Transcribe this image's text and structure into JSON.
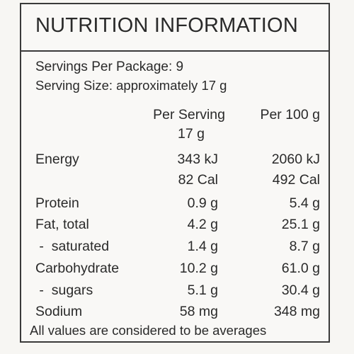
{
  "panel": {
    "title": "NUTRITION INFORMATION",
    "servings": "Servings Per Package: 9",
    "serving_size": "Serving Size: approximately 17 g",
    "headers": {
      "per_serving": "Per Serving",
      "per_serving_sub": "17 g",
      "per_100g": "Per 100 g"
    },
    "rows": [
      {
        "label": "Energy",
        "per_serving": "343 kJ",
        "per_100g": "2060 kJ"
      },
      {
        "label": "",
        "per_serving": "82 Cal",
        "per_100g": "492 Cal"
      },
      {
        "label": "Protein",
        "per_serving": "0.9 g",
        "per_100g": "5.4 g"
      },
      {
        "label": "Fat, total",
        "per_serving": "4.2 g",
        "per_100g": "25.1 g"
      },
      {
        "label": " -  saturated",
        "per_serving": "1.4 g",
        "per_100g": "8.7 g"
      },
      {
        "label": "Carbohydrate",
        "per_serving": "10.2 g",
        "per_100g": "61.0 g"
      },
      {
        "label": " -  sugars",
        "per_serving": "5.1 g",
        "per_100g": "30.4 g"
      },
      {
        "label": "Sodium",
        "per_serving": "58 mg",
        "per_100g": "348 mg"
      }
    ],
    "footer": "All values are considered to be averages"
  }
}
